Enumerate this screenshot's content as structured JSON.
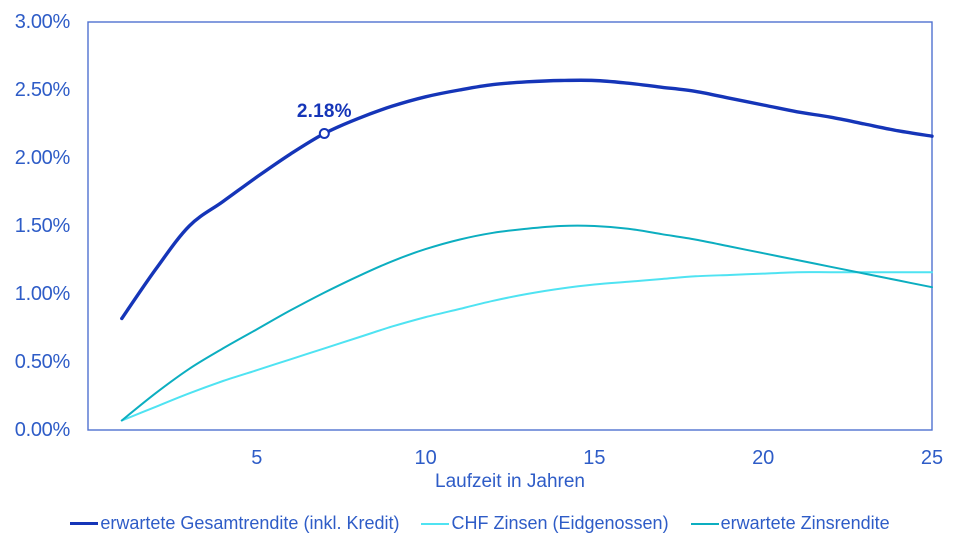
{
  "chart_data": {
    "type": "line",
    "title": "",
    "xlabel": "Laufzeit in Jahren",
    "ylabel": "",
    "xlim": [
      0,
      25
    ],
    "ylim": [
      0,
      3
    ],
    "grid": false,
    "legend_position": "bottom",
    "x": [
      1,
      2,
      3,
      4,
      5,
      6,
      7,
      8,
      9,
      10,
      11,
      12,
      13,
      14,
      15,
      16,
      17,
      18,
      19,
      20,
      21,
      22,
      23,
      24,
      25
    ],
    "series": [
      {
        "name": "erwartete Gesamtrendite (inkl. Kredit)",
        "color": "#1535b8",
        "line_width": 3.4,
        "values": [
          0.82,
          1.18,
          1.5,
          1.68,
          1.86,
          2.03,
          2.18,
          2.29,
          2.38,
          2.45,
          2.5,
          2.54,
          2.56,
          2.57,
          2.57,
          2.55,
          2.52,
          2.49,
          2.44,
          2.39,
          2.34,
          2.3,
          2.25,
          2.2,
          2.16
        ]
      },
      {
        "name": "CHF Zinsen (Eidgenossen)",
        "color": "#4fe3f2",
        "line_width": 2,
        "values": [
          0.07,
          0.17,
          0.27,
          0.36,
          0.44,
          0.52,
          0.6,
          0.68,
          0.76,
          0.83,
          0.89,
          0.95,
          1.0,
          1.04,
          1.07,
          1.09,
          1.11,
          1.13,
          1.14,
          1.15,
          1.16,
          1.16,
          1.16,
          1.16,
          1.16
        ]
      },
      {
        "name": "erwartete Zinsrendite",
        "color": "#0caec0",
        "line_width": 2,
        "values": [
          0.07,
          0.27,
          0.45,
          0.6,
          0.74,
          0.88,
          1.01,
          1.13,
          1.24,
          1.33,
          1.4,
          1.45,
          1.48,
          1.5,
          1.5,
          1.48,
          1.44,
          1.4,
          1.35,
          1.3,
          1.25,
          1.2,
          1.15,
          1.1,
          1.05
        ]
      }
    ],
    "yticks": [
      {
        "label": "3.00%",
        "value": 3
      },
      {
        "label": "2.50%",
        "value": 2.5
      },
      {
        "label": "2.00%",
        "value": 2
      },
      {
        "label": "1.50%",
        "value": 1.5
      },
      {
        "label": "1.00%",
        "value": 1
      },
      {
        "label": "0.50%",
        "value": 0.5
      },
      {
        "label": "0.00%",
        "value": 0
      }
    ],
    "xticks": [
      {
        "label": "5",
        "value": 5
      },
      {
        "label": "10",
        "value": 10
      },
      {
        "label": "15",
        "value": 15
      },
      {
        "label": "20",
        "value": 20
      },
      {
        "label": "25",
        "value": 25
      }
    ],
    "annotation": {
      "label": "2.18%",
      "x": 7,
      "y": 2.18,
      "series": "erwartete Gesamtrendite (inkl. Kredit)"
    }
  },
  "colors": {
    "label_text": "#2e5cc7",
    "axis_border": "#4f71cf",
    "background": "#ffffff",
    "annotation_text": "#1535b8"
  }
}
